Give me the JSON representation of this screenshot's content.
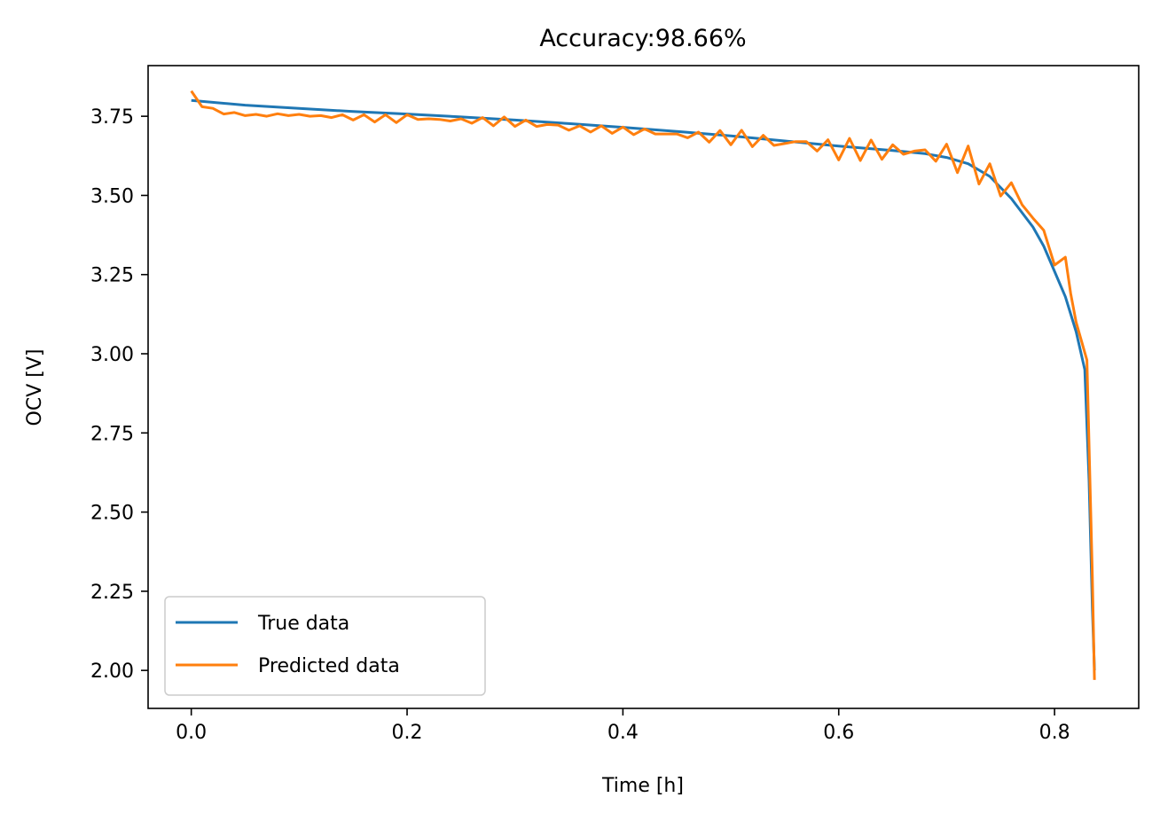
{
  "chart_data": {
    "type": "line",
    "title": "Accuracy:98.66%",
    "xlabel": "Time [h]",
    "ylabel": "OCV [V]",
    "xlim": [
      -0.04,
      0.878
    ],
    "ylim": [
      1.88,
      3.91
    ],
    "xticks": [
      0.0,
      0.2,
      0.4,
      0.6,
      0.8
    ],
    "xtick_labels": [
      "0.0",
      "0.2",
      "0.4",
      "0.6",
      "0.8"
    ],
    "yticks": [
      2.0,
      2.25,
      2.5,
      2.75,
      3.0,
      3.25,
      3.5,
      3.75
    ],
    "ytick_labels": [
      "2.00",
      "2.25",
      "2.50",
      "2.75",
      "3.00",
      "3.25",
      "3.50",
      "3.75"
    ],
    "grid": false,
    "legend_position": "lower-left",
    "series": [
      {
        "name": "True data",
        "color": "#1f77b4",
        "x": [
          0.0,
          0.05,
          0.1,
          0.15,
          0.2,
          0.25,
          0.3,
          0.35,
          0.4,
          0.45,
          0.5,
          0.55,
          0.6,
          0.65,
          0.68,
          0.7,
          0.72,
          0.74,
          0.76,
          0.78,
          0.79,
          0.8,
          0.81,
          0.82,
          0.828,
          0.832,
          0.835,
          0.837
        ],
        "y": [
          3.8,
          3.785,
          3.775,
          3.765,
          3.757,
          3.748,
          3.738,
          3.727,
          3.715,
          3.702,
          3.688,
          3.672,
          3.656,
          3.642,
          3.632,
          3.62,
          3.6,
          3.56,
          3.49,
          3.4,
          3.34,
          3.26,
          3.18,
          3.07,
          2.95,
          2.6,
          2.2,
          2.0
        ]
      },
      {
        "name": "Predicted data",
        "color": "#ff7f0e",
        "x": [
          0.0,
          0.01,
          0.02,
          0.03,
          0.04,
          0.05,
          0.06,
          0.07,
          0.08,
          0.09,
          0.1,
          0.11,
          0.12,
          0.13,
          0.14,
          0.15,
          0.16,
          0.17,
          0.18,
          0.19,
          0.2,
          0.21,
          0.22,
          0.23,
          0.24,
          0.25,
          0.26,
          0.27,
          0.28,
          0.29,
          0.3,
          0.31,
          0.32,
          0.33,
          0.34,
          0.35,
          0.36,
          0.37,
          0.38,
          0.39,
          0.4,
          0.41,
          0.42,
          0.43,
          0.44,
          0.45,
          0.46,
          0.47,
          0.48,
          0.49,
          0.5,
          0.51,
          0.52,
          0.53,
          0.54,
          0.55,
          0.56,
          0.57,
          0.58,
          0.59,
          0.6,
          0.61,
          0.62,
          0.63,
          0.64,
          0.65,
          0.66,
          0.67,
          0.68,
          0.69,
          0.7,
          0.71,
          0.72,
          0.73,
          0.74,
          0.75,
          0.76,
          0.77,
          0.78,
          0.79,
          0.8,
          0.81,
          0.815,
          0.82,
          0.825,
          0.83,
          0.835,
          0.837
        ],
        "y": [
          3.83,
          3.78,
          3.775,
          3.757,
          3.762,
          3.752,
          3.756,
          3.75,
          3.758,
          3.752,
          3.756,
          3.75,
          3.752,
          3.746,
          3.755,
          3.738,
          3.755,
          3.732,
          3.755,
          3.73,
          3.755,
          3.74,
          3.742,
          3.74,
          3.735,
          3.742,
          3.728,
          3.746,
          3.72,
          3.748,
          3.718,
          3.738,
          3.718,
          3.724,
          3.722,
          3.706,
          3.72,
          3.7,
          3.72,
          3.696,
          3.716,
          3.692,
          3.71,
          3.694,
          3.694,
          3.694,
          3.682,
          3.7,
          3.668,
          3.705,
          3.66,
          3.706,
          3.654,
          3.69,
          3.658,
          3.664,
          3.67,
          3.67,
          3.64,
          3.676,
          3.612,
          3.68,
          3.61,
          3.675,
          3.614,
          3.66,
          3.63,
          3.64,
          3.644,
          3.608,
          3.662,
          3.572,
          3.656,
          3.536,
          3.6,
          3.498,
          3.54,
          3.47,
          3.428,
          3.39,
          3.28,
          3.305,
          3.19,
          3.1,
          3.04,
          2.98,
          2.3,
          1.97
        ]
      }
    ]
  }
}
